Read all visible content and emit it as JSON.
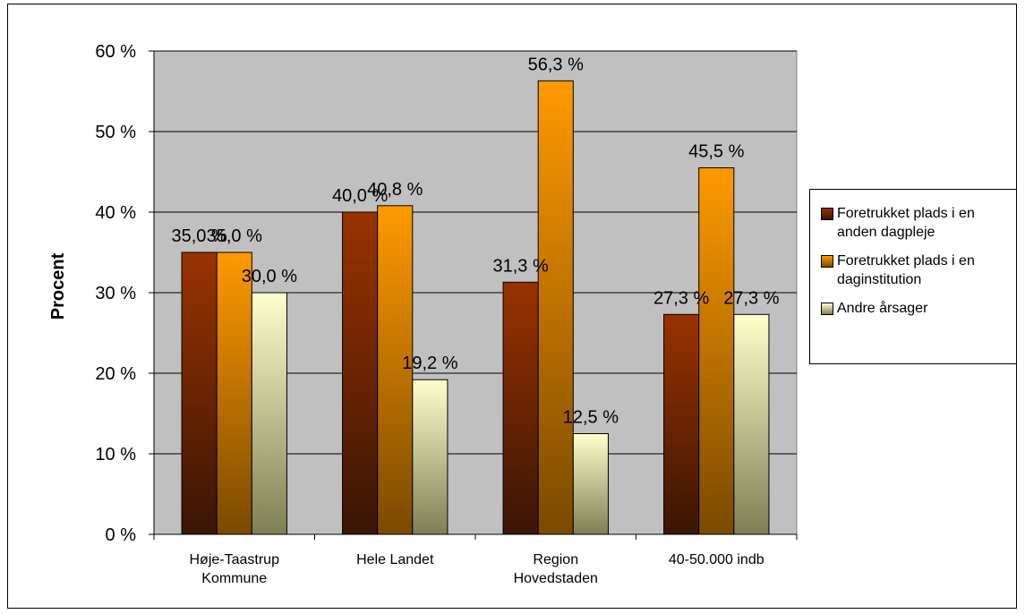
{
  "chart_data": {
    "type": "bar",
    "title": "",
    "xlabel": "",
    "ylabel": "Procent",
    "ylim": [
      0,
      60
    ],
    "yticks": [
      "0 %",
      "10 %",
      "20 %",
      "30 %",
      "40 %",
      "50 %",
      "60 %"
    ],
    "categories": [
      [
        "Høje-Taastrup",
        "Kommune"
      ],
      [
        "Hele Landet"
      ],
      [
        "Region",
        "Hovedstaden"
      ],
      [
        "40-50.000 indb"
      ]
    ],
    "series": [
      {
        "name": "Foretrukket plads i en anden dagpleje",
        "legend_lines": [
          "Foretrukket plads i en",
          "anden dagpleje"
        ],
        "values": [
          35.0,
          40.0,
          31.3,
          27.3
        ],
        "labels": [
          "35,0 %",
          "40,0 %",
          "31,3 %",
          "27,3 %"
        ],
        "color_top": "#993300",
        "color_bottom": "#3a1505"
      },
      {
        "name": "Foretrukket plads i en daginstitution",
        "legend_lines": [
          "Foretrukket plads i en",
          "daginstitution"
        ],
        "values": [
          35.0,
          40.8,
          56.3,
          45.5
        ],
        "labels": [
          "35,0 %",
          "40,8 %",
          "56,3 %",
          "45,5 %"
        ],
        "color_top": "#ff9900",
        "color_bottom": "#7a4a00"
      },
      {
        "name": "Andre årsager",
        "legend_lines": [
          "Andre årsager"
        ],
        "values": [
          30.0,
          19.2,
          12.5,
          27.3
        ],
        "labels": [
          "30,0 %",
          "19,2 %",
          "12,5 %",
          "27,3 %"
        ],
        "color_top": "#ffffcc",
        "color_bottom": "#7f7f55"
      }
    ],
    "grid": true,
    "plot_background": "#c0c0c0",
    "legend_position": "right"
  }
}
